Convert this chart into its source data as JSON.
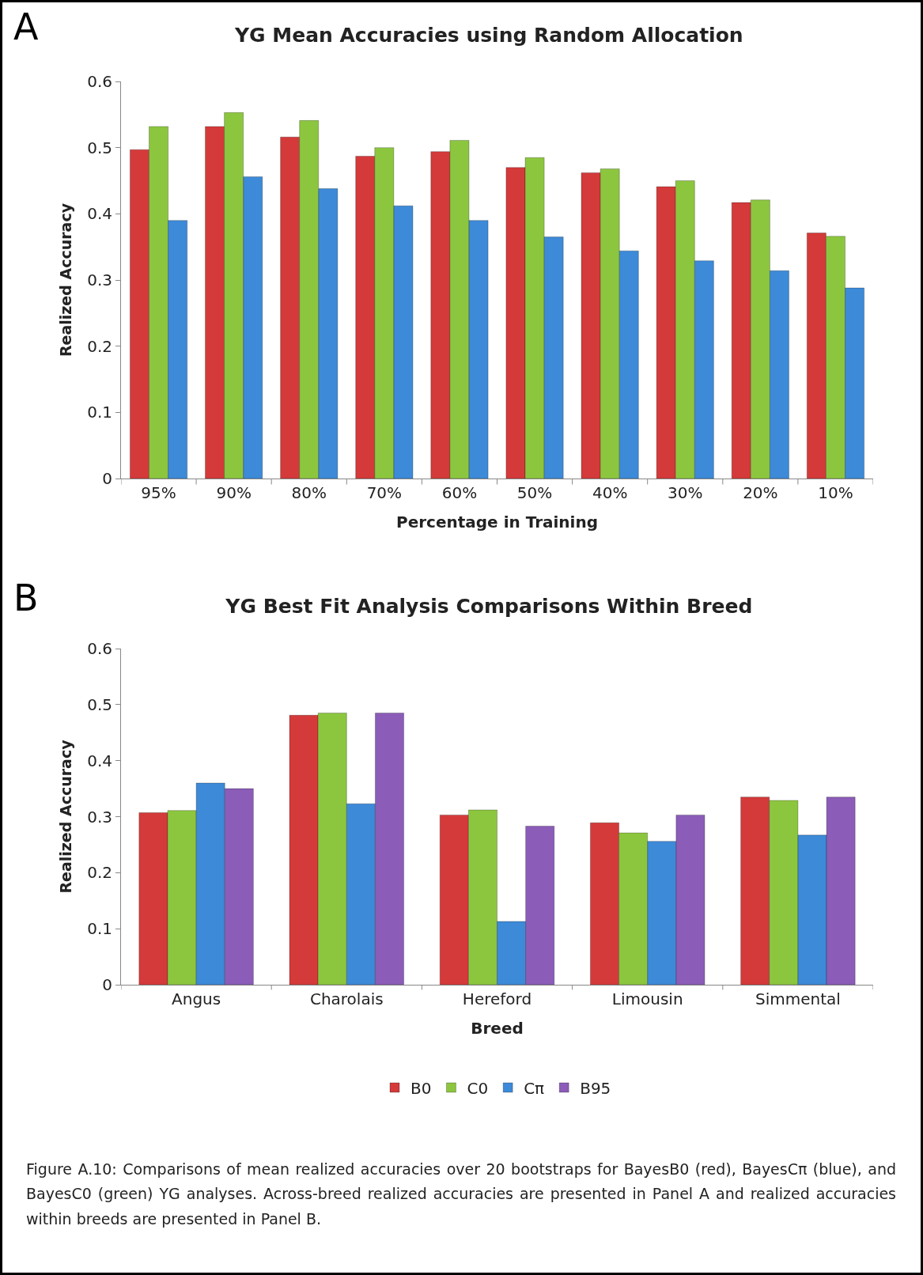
{
  "chart_data": [
    {
      "type": "bar",
      "title": "YG Mean Accuracies using Random Allocation",
      "xlabel": "Percentage in Training",
      "ylabel": "Realized Accuracy",
      "annotations": [
        "A"
      ],
      "categories": [
        "95%",
        "90%",
        "80%",
        "70%",
        "60%",
        "50%",
        "40%",
        "30%",
        "20%",
        "10%"
      ],
      "series": [
        {
          "color": "#d43a3a",
          "values": [
            0.497,
            0.532,
            0.516,
            0.487,
            0.494,
            0.47,
            0.462,
            0.441,
            0.417,
            0.371
          ]
        },
        {
          "color": "#8cc63f",
          "values": [
            0.532,
            0.553,
            0.541,
            0.5,
            0.511,
            0.485,
            0.468,
            0.45,
            0.421,
            0.366
          ]
        },
        {
          "color": "#3d8ad8",
          "values": [
            0.39,
            0.456,
            0.438,
            0.412,
            0.39,
            0.365,
            0.344,
            0.329,
            0.314,
            0.288
          ]
        }
      ],
      "ylim": [
        0,
        0.6
      ],
      "yticks": [
        0,
        0.1,
        0.2,
        0.3,
        0.4,
        0.5,
        0.6
      ],
      "grid": false,
      "legend": false
    },
    {
      "type": "bar",
      "title": "YG Best Fit Analysis Comparisons Within Breed",
      "xlabel": "Breed",
      "ylabel": "Realized Accuracy",
      "annotations": [
        "B",
        "Figure A.10:  Comparisons of mean realized accuracies over 20 bootstraps for BayesB0 (red), BayesCπ (blue), and BayesC0 (green) YG analyses.  Across-breed realized accuracies are presented in Panel A and realized accuracies within breeds are presented in Panel B."
      ],
      "categories": [
        "Angus",
        "Charolais",
        "Hereford",
        "Limousin",
        "Simmental"
      ],
      "series": [
        {
          "name": "B0",
          "color": "#d43a3a",
          "values": [
            0.307,
            0.481,
            0.303,
            0.289,
            0.335
          ]
        },
        {
          "name": "C0",
          "color": "#8cc63f",
          "values": [
            0.311,
            0.485,
            0.312,
            0.271,
            0.329
          ]
        },
        {
          "name": "Cπ",
          "color": "#3d8ad8",
          "values": [
            0.36,
            0.323,
            0.113,
            0.256,
            0.267
          ]
        },
        {
          "name": "B95",
          "color": "#8b5cb8",
          "values": [
            0.35,
            0.485,
            0.283,
            0.303,
            0.335
          ]
        }
      ],
      "ylim": [
        0,
        0.6
      ],
      "yticks": [
        0,
        0.1,
        0.2,
        0.3,
        0.4,
        0.5,
        0.6
      ],
      "grid": false,
      "legend": "bottom"
    }
  ]
}
